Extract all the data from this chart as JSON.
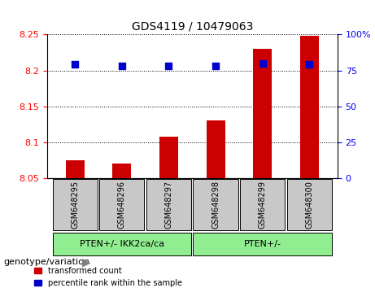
{
  "title": "GDS4119 / 10479063",
  "samples": [
    "GSM648295",
    "GSM648296",
    "GSM648297",
    "GSM648298",
    "GSM648299",
    "GSM648300"
  ],
  "red_values": [
    8.075,
    8.07,
    8.108,
    8.13,
    8.23,
    8.248
  ],
  "blue_values": [
    79,
    78,
    78,
    78,
    80,
    79
  ],
  "ylim_left": [
    8.05,
    8.25
  ],
  "ylim_right": [
    0,
    100
  ],
  "yticks_left": [
    8.05,
    8.1,
    8.15,
    8.2,
    8.25
  ],
  "yticks_right": [
    0,
    25,
    50,
    75,
    100
  ],
  "groups": [
    {
      "label": "PTEN+/- IKK2ca/ca",
      "samples": [
        "GSM648295",
        "GSM648296",
        "GSM648297"
      ],
      "color": "#90EE90"
    },
    {
      "label": "PTEN+/-",
      "samples": [
        "GSM648298",
        "GSM648299",
        "GSM648300"
      ],
      "color": "#90EE90"
    }
  ],
  "bar_color": "#CC0000",
  "dot_color": "#0000CC",
  "grid_color": "#000000",
  "ax_bg": "#FFFFFF",
  "label_bg": "#C8C8C8",
  "group_bg": "#90EE90",
  "legend_red_label": "transformed count",
  "legend_blue_label": "percentile rank within the sample",
  "genotype_label": "genotype/variation",
  "bar_width": 0.4
}
